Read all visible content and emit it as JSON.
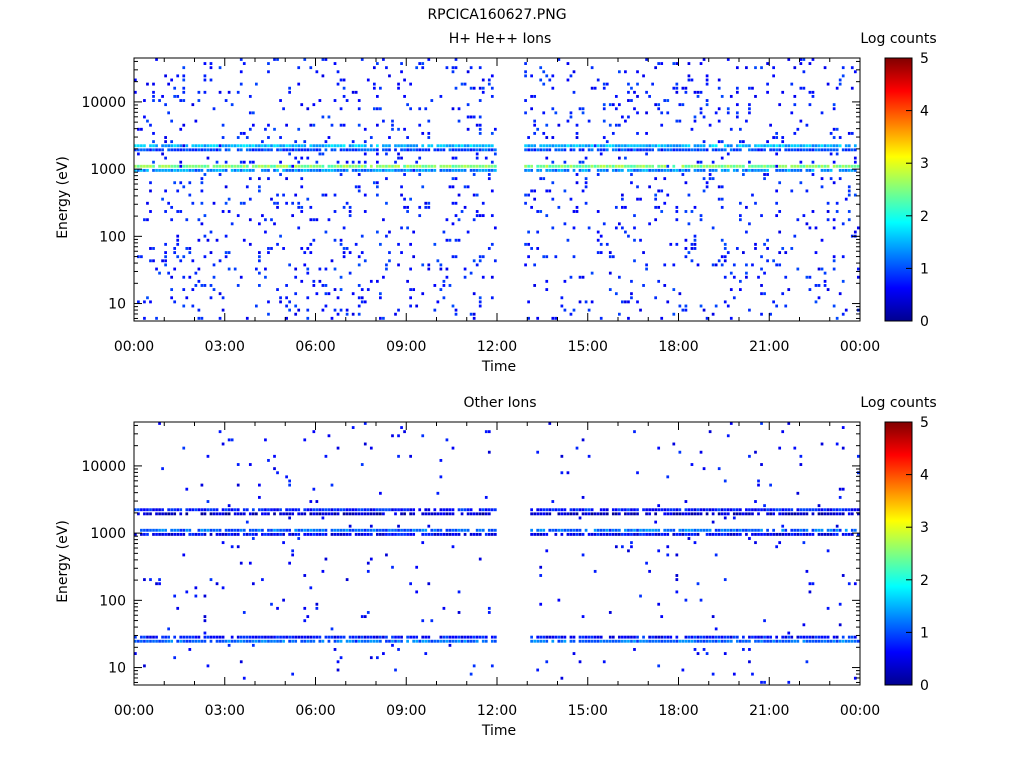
{
  "figure_title": "RPCICA160627.PNG",
  "chart_data": [
    {
      "type": "heatmap",
      "title": "H+ He++ Ions",
      "xlabel": "Time",
      "ylabel": "Energy (eV)",
      "x_ticks": [
        "00:00",
        "03:00",
        "06:00",
        "09:00",
        "12:00",
        "15:00",
        "18:00",
        "21:00",
        "00:00"
      ],
      "xlim_hours": [
        0,
        24
      ],
      "y_scale": "log",
      "ylim": [
        5.5,
        45000
      ],
      "y_ticks": [
        10,
        100,
        1000,
        10000
      ],
      "y_tick_labels": [
        "10",
        "100",
        "1000",
        "10000"
      ],
      "colorbar": {
        "label": "Log counts",
        "min": 0,
        "max": 5,
        "ticks": [
          "0",
          "1",
          "2",
          "3",
          "4",
          "5"
        ]
      },
      "data_gap_hours": [
        12.0,
        12.9
      ],
      "bands": [
        {
          "energy_eV": 1050,
          "log_counts": 2.9
        },
        {
          "energy_eV": 2100,
          "log_counts": 1.9
        }
      ],
      "background_log_counts": 0.5
    },
    {
      "type": "heatmap",
      "title": "Other Ions",
      "xlabel": "Time",
      "ylabel": "Energy (eV)",
      "x_ticks": [
        "00:00",
        "03:00",
        "06:00",
        "09:00",
        "12:00",
        "15:00",
        "18:00",
        "21:00",
        "00:00"
      ],
      "xlim_hours": [
        0,
        24
      ],
      "y_scale": "log",
      "ylim": [
        5.5,
        45000
      ],
      "y_ticks": [
        10,
        100,
        1000,
        10000
      ],
      "y_tick_labels": [
        "10",
        "100",
        "1000",
        "10000"
      ],
      "colorbar": {
        "label": "Log counts",
        "min": 0,
        "max": 5,
        "ticks": [
          "0",
          "1",
          "2",
          "3",
          "4",
          "5"
        ]
      },
      "data_gap_hours": [
        12.0,
        13.1
      ],
      "bands": [
        {
          "energy_eV": 1050,
          "log_counts": 1.3
        },
        {
          "energy_eV": 2150,
          "log_counts": 0.8
        },
        {
          "energy_eV": 25,
          "log_counts": 1.4
        }
      ],
      "background_log_counts": 0.4
    }
  ]
}
